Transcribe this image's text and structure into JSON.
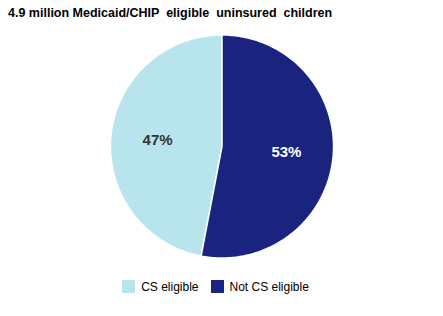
{
  "chart_data": {
    "type": "pie",
    "title": "4.9 million Medicaid/CHIP  eligible  uninsured  children",
    "categories": [
      "CS eligible",
      "Not CS eligible"
    ],
    "values": [
      47,
      53
    ],
    "value_labels": [
      "47%",
      "53%"
    ],
    "colors": [
      "#b8e4ed",
      "#1a237e"
    ],
    "data_labels": true,
    "legend": "bottom"
  }
}
